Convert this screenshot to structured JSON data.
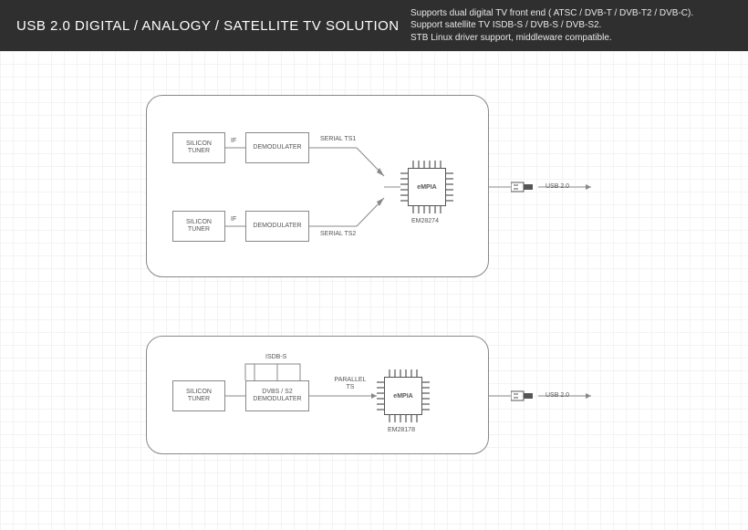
{
  "header": {
    "title": "USB 2.0 DIGITAL / ANALOGY / SATELLITE TV SOLUTION",
    "desc_line1": "Supports dual digital TV front end ( ATSC / DVB-T / DVB-T2 / DVB-C).",
    "desc_line2": "Support satellite TV ISDB-S / DVB-S / DVB-S2.",
    "desc_line3": "STB Linux driver support, middleware compatible."
  },
  "board1": {
    "tuner1": "SILICON\nTUNER",
    "tuner2": "SILICON\nTUNER",
    "demod1": "DEMODULATER",
    "demod2": "DEMODULATER",
    "if1": "IF",
    "if2": "IF",
    "ts1": "SERIAL TS1",
    "ts2": "SERIAL TS2",
    "chip_brand": "eMPIA",
    "chip_part": "EM28274",
    "usb_label": "USB 2.0"
  },
  "board2": {
    "tuner": "SILICON\nTUNER",
    "demod": "DVBS / S2\nDEMODULATER",
    "isdb": "ISDB-S",
    "ts": "PARALLEL\nTS",
    "chip_brand": "eMPIA",
    "chip_part": "EM28178",
    "usb_label": "USB 2.0"
  },
  "colors": {
    "header_bg": "#2f2f2f",
    "stroke": "#888888"
  }
}
